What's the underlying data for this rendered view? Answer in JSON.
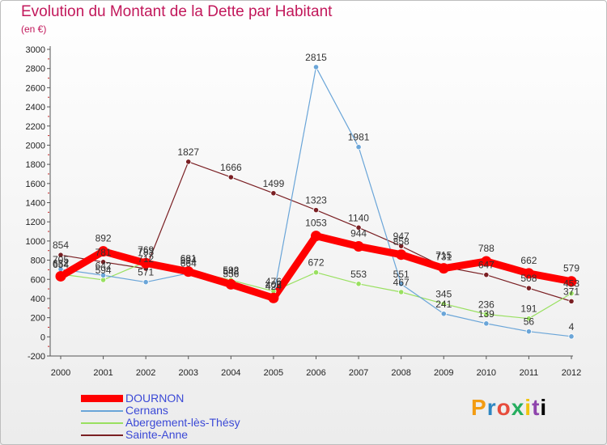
{
  "header": {
    "title": "Evolution du Montant de la Dette par Habitant",
    "subtitle": "(en €)"
  },
  "logo": {
    "letters": [
      "P",
      "r",
      "o",
      "x",
      "i",
      "t",
      "i"
    ]
  },
  "chart_data": {
    "type": "line",
    "title": "Evolution du Montant de la Dette par Habitant",
    "ylabel": "(en €)",
    "xlabel": "",
    "ylim": [
      -200,
      3000
    ],
    "yticks": [
      -200,
      0,
      200,
      400,
      600,
      800,
      1000,
      1200,
      1400,
      1600,
      1800,
      2000,
      2200,
      2400,
      2600,
      2800,
      3000
    ],
    "grid": false,
    "legend_position": "bottom-left",
    "x": [
      "2000",
      "2001",
      "2002",
      "2003",
      "2004",
      "2005",
      "2006",
      "2007",
      "2008",
      "2009",
      "2010",
      "2011",
      "2012"
    ],
    "series": [
      {
        "name": "DOURNON",
        "color": "#ff0000",
        "values": [
          632,
          892,
          769,
          681,
          548,
          406,
          1053,
          944,
          858,
          715,
          788,
          662,
          579
        ]
      },
      {
        "name": "Cernans",
        "color": "#6aa5d8",
        "values": [
          705,
          642,
          571,
          664,
          556,
          424,
          2815,
          1981,
          551,
          241,
          139,
          56,
          4
        ]
      },
      {
        "name": "Abergement-lès-Thésy",
        "color": "#99e060",
        "values": [
          654,
          594,
          783,
          694,
          592,
          476,
          672,
          553,
          467,
          345,
          236,
          191,
          453
        ]
      },
      {
        "name": "Sainte-Anne",
        "color": "#7a1f23",
        "values": [
          854,
          781,
          712,
          1827,
          1666,
          1499,
          1323,
          1140,
          947,
          731,
          647,
          508,
          371
        ]
      }
    ]
  }
}
